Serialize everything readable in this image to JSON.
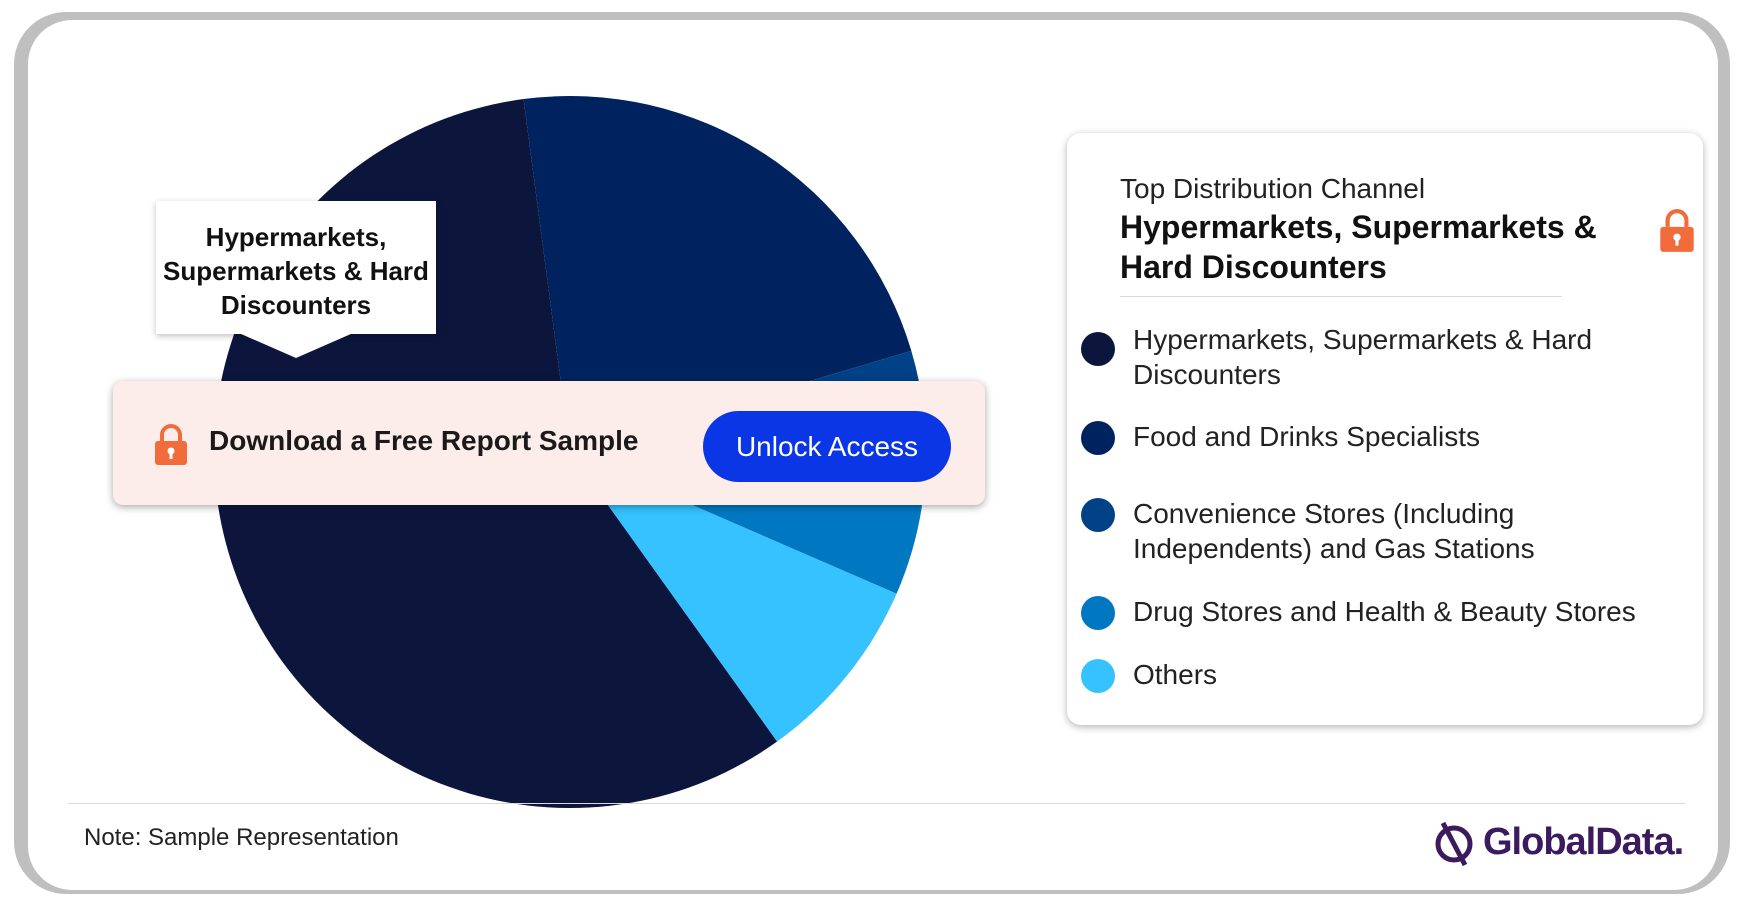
{
  "chart_data": {
    "type": "pie",
    "title": "",
    "series": [
      {
        "name": "Hypermarkets, Supermarkets & Hard Discounters",
        "value": 57.8,
        "color": "#0c163d"
      },
      {
        "name": "Food and Drinks Specialists",
        "value": 22.5,
        "color": "#00235f"
      },
      {
        "name": "Convenience Stores (Including Independents) and Gas Stations",
        "value": 4.7,
        "color": "#004187"
      },
      {
        "name": "Drug Stores and Health & Beauty Stores",
        "value": 6.4,
        "color": "#0078c1"
      },
      {
        "name": "Others",
        "value": 8.6,
        "color": "#35c2ff"
      }
    ],
    "legend_position": "right"
  },
  "callout": {
    "label": "Hypermarkets, Supermarkets & Hard Discounters"
  },
  "banner": {
    "text": "Download a Free Report Sample",
    "button": "Unlock Access",
    "lock_icon": "lock-icon",
    "lock_color": "#f26b3a",
    "button_color": "#0a36e6"
  },
  "legend": {
    "subtitle": "Top Distribution Channel",
    "title": "Hypermarkets, Supermarkets & Hard Discounters",
    "lock_icon": "lock-icon"
  },
  "footer": {
    "note": "Note: Sample Representation",
    "brand": "GlobalData."
  }
}
